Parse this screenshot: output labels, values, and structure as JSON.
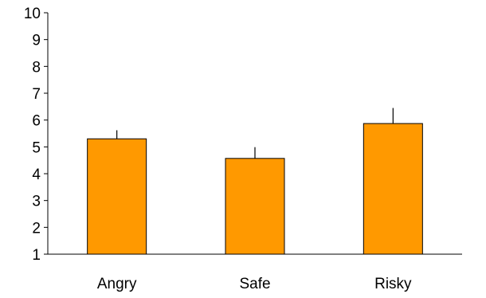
{
  "chart_data": {
    "type": "bar",
    "categories": [
      "Angry",
      "Safe",
      "Risky"
    ],
    "values": [
      5.3,
      4.57,
      5.87
    ],
    "error_bars": [
      0.32,
      0.42,
      0.58
    ],
    "ylim": [
      1,
      10
    ],
    "yticks": [
      1,
      2,
      3,
      4,
      5,
      6,
      7,
      8,
      9,
      10
    ],
    "title": "",
    "xlabel": "",
    "ylabel": "",
    "grid": false,
    "bar_color": "#FF9900"
  }
}
